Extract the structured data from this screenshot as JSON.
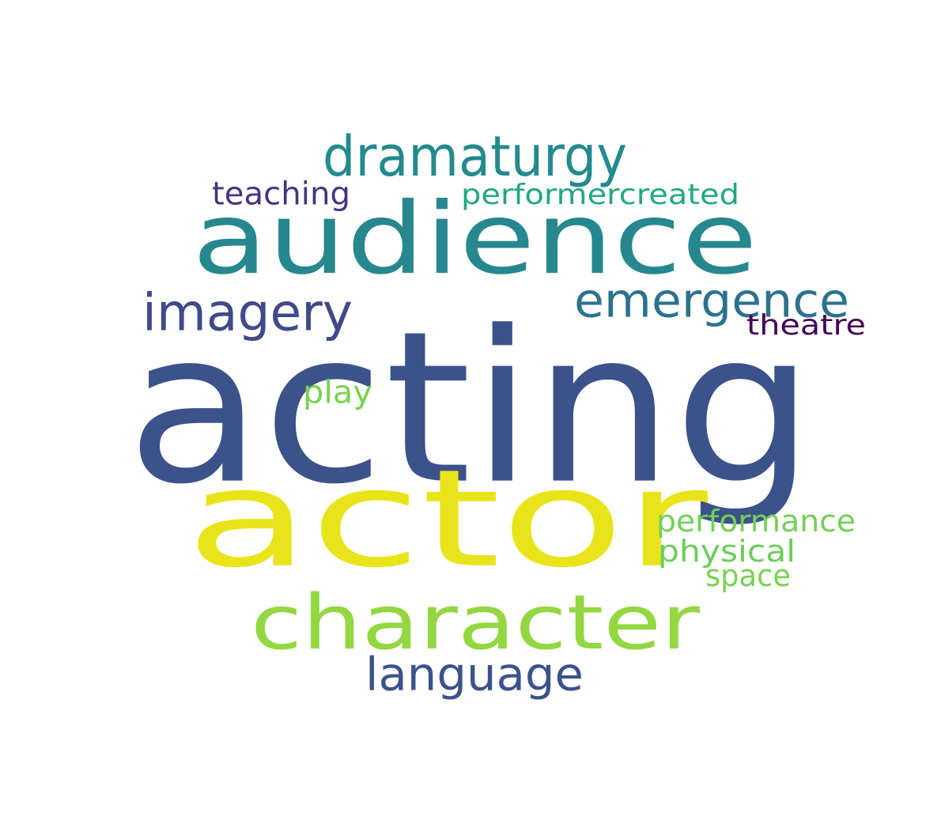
{
  "background": "#ffffff",
  "words": [
    {
      "id": "acting",
      "text": "acting",
      "color": "#3b528b"
    },
    {
      "id": "actor",
      "text": "actor",
      "color": "#e8e419"
    },
    {
      "id": "audience",
      "text": "audience",
      "color": "#26888e"
    },
    {
      "id": "character",
      "text": "character",
      "color": "#93d741"
    },
    {
      "id": "dramaturgy",
      "text": "dramaturgy",
      "color": "#238a8d"
    },
    {
      "id": "emergence",
      "text": "emergence",
      "color": "#2c728e"
    },
    {
      "id": "imagery",
      "text": "imagery",
      "color": "#3e4a89"
    },
    {
      "id": "language",
      "text": "language",
      "color": "#3b528b"
    },
    {
      "id": "teaching",
      "text": "teaching",
      "color": "#46337e"
    },
    {
      "id": "performercreated",
      "text": "performercreated",
      "color": "#22a884"
    },
    {
      "id": "theatre",
      "text": "theatre",
      "color": "#440154"
    },
    {
      "id": "play",
      "text": "play",
      "color": "#7ad151"
    },
    {
      "id": "performance",
      "text": "performance",
      "color": "#73d056"
    },
    {
      "id": "physical",
      "text": "physical",
      "color": "#6ccd5a"
    },
    {
      "id": "space",
      "text": "space",
      "color": "#7ad151"
    }
  ]
}
